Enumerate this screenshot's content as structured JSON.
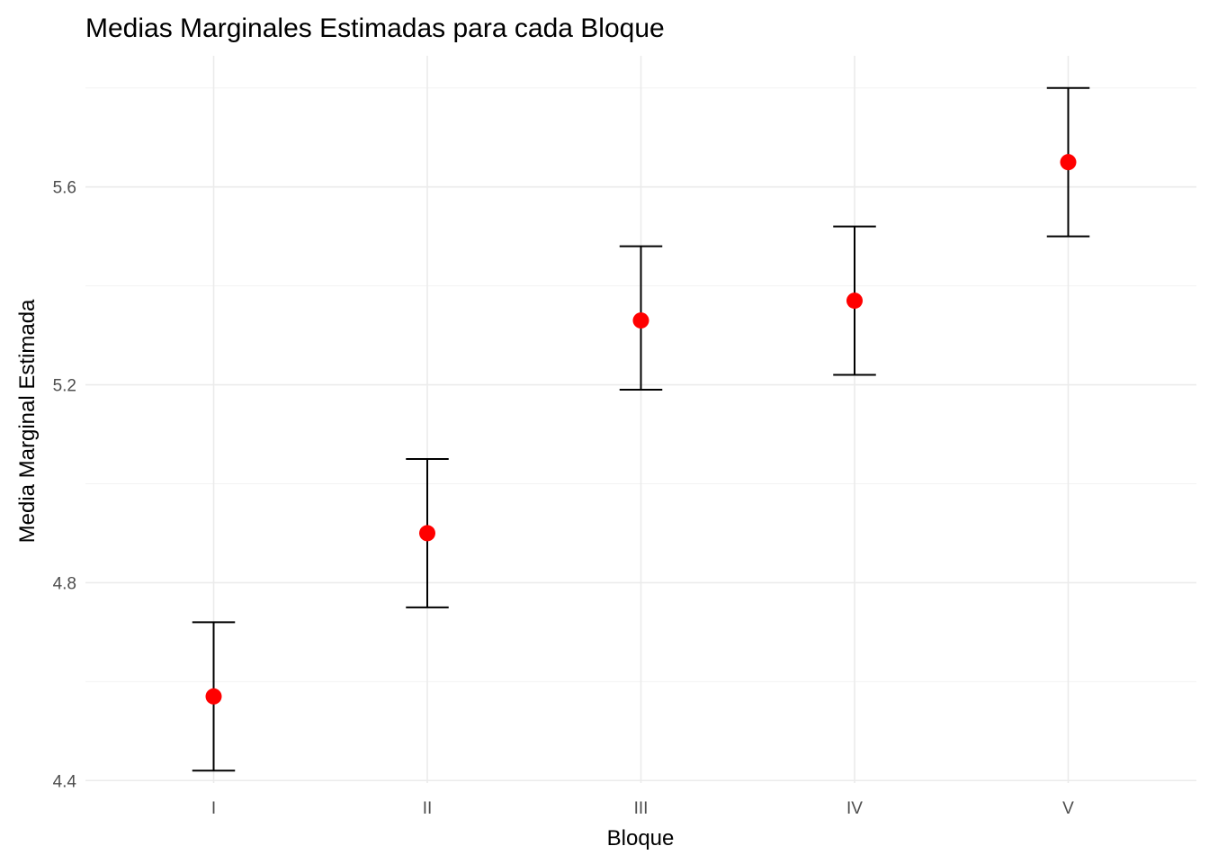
{
  "chart_data": {
    "type": "scatter",
    "title": "Medias Marginales Estimadas para cada Bloque",
    "xlabel": "Bloque",
    "ylabel": "Media Marginal Estimada",
    "categories": [
      "I",
      "II",
      "III",
      "IV",
      "V"
    ],
    "series": [
      {
        "values": [
          4.57,
          4.9,
          5.33,
          5.37,
          5.65
        ],
        "lower": [
          4.42,
          4.75,
          5.19,
          5.22,
          5.5
        ],
        "upper": [
          4.72,
          5.05,
          5.48,
          5.52,
          5.8
        ]
      }
    ],
    "yticks": [
      4.4,
      4.8,
      5.2,
      5.6
    ],
    "ytick_labels": [
      "4.4",
      "4.8",
      "5.2",
      "5.6"
    ],
    "ylim": [
      4.395,
      5.865
    ],
    "grid": true,
    "legend": "none",
    "colors": {
      "point": "#ff0000",
      "errorbar": "#000000",
      "grid": "#ebebeb"
    }
  }
}
